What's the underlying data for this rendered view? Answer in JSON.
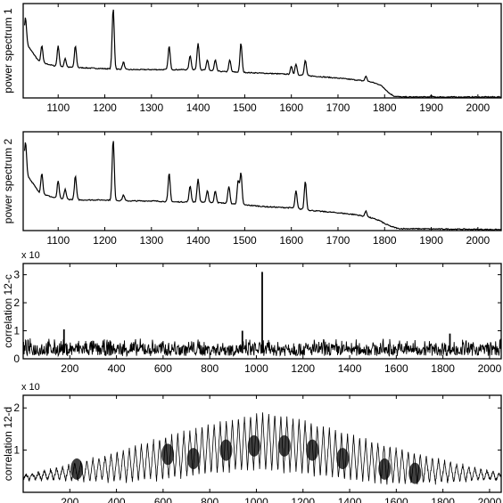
{
  "chart_data": [
    {
      "type": "line",
      "ylabel": "power spectrum 1",
      "xlim": [
        1025,
        2050
      ],
      "xticks": [
        1100,
        1200,
        1300,
        1400,
        1500,
        1600,
        1700,
        1800,
        1900,
        2000
      ],
      "yticks": [],
      "grid": false,
      "series": [
        {
          "baseline": [
            [
              1028,
              0.6
            ],
            [
              1060,
              0.38
            ],
            [
              1100,
              0.33
            ],
            [
              1150,
              0.32
            ],
            [
              1200,
              0.31
            ],
            [
              1250,
              0.3
            ],
            [
              1300,
              0.3
            ],
            [
              1350,
              0.3
            ],
            [
              1400,
              0.3
            ],
            [
              1450,
              0.28
            ],
            [
              1500,
              0.27
            ],
            [
              1550,
              0.26
            ],
            [
              1600,
              0.25
            ],
            [
              1650,
              0.23
            ],
            [
              1700,
              0.21
            ],
            [
              1740,
              0.19
            ],
            [
              1770,
              0.17
            ],
            [
              1790,
              0.14
            ],
            [
              1800,
              0.1
            ],
            [
              1810,
              0.05
            ],
            [
              1820,
              0.02
            ],
            [
              1835,
              0.01
            ],
            [
              2050,
              0.01
            ]
          ],
          "peaks": [
            [
              1030,
              0.85
            ],
            [
              1065,
              0.55
            ],
            [
              1100,
              0.55
            ],
            [
              1115,
              0.42
            ],
            [
              1137,
              0.55
            ],
            [
              1218,
              0.95
            ],
            [
              1240,
              0.38
            ],
            [
              1338,
              0.55
            ],
            [
              1383,
              0.45
            ],
            [
              1400,
              0.58
            ],
            [
              1420,
              0.4
            ],
            [
              1437,
              0.4
            ],
            [
              1468,
              0.4
            ],
            [
              1492,
              0.58
            ],
            [
              1600,
              0.33
            ],
            [
              1610,
              0.36
            ],
            [
              1630,
              0.4
            ],
            [
              1760,
              0.23
            ],
            [
              1900,
              0.02
            ]
          ]
        }
      ]
    },
    {
      "type": "line",
      "ylabel": "power spectrum 2",
      "xlim": [
        1025,
        2050
      ],
      "xticks": [
        1100,
        1200,
        1300,
        1400,
        1500,
        1600,
        1700,
        1800,
        1900,
        2000
      ],
      "yticks": [],
      "grid": false,
      "series": [
        {
          "baseline": [
            [
              1028,
              0.6
            ],
            [
              1060,
              0.38
            ],
            [
              1100,
              0.32
            ],
            [
              1150,
              0.31
            ],
            [
              1200,
              0.31
            ],
            [
              1250,
              0.3
            ],
            [
              1300,
              0.3
            ],
            [
              1350,
              0.29
            ],
            [
              1400,
              0.29
            ],
            [
              1450,
              0.28
            ],
            [
              1500,
              0.26
            ],
            [
              1550,
              0.24
            ],
            [
              1600,
              0.23
            ],
            [
              1650,
              0.2
            ],
            [
              1700,
              0.18
            ],
            [
              1740,
              0.16
            ],
            [
              1770,
              0.13
            ],
            [
              1790,
              0.1
            ],
            [
              1800,
              0.07
            ],
            [
              1815,
              0.04
            ],
            [
              1830,
              0.02
            ],
            [
              2050,
              0.01
            ]
          ],
          "peaks": [
            [
              1030,
              0.9
            ],
            [
              1065,
              0.58
            ],
            [
              1100,
              0.5
            ],
            [
              1115,
              0.42
            ],
            [
              1137,
              0.55
            ],
            [
              1218,
              0.92
            ],
            [
              1240,
              0.36
            ],
            [
              1338,
              0.58
            ],
            [
              1383,
              0.45
            ],
            [
              1400,
              0.52
            ],
            [
              1420,
              0.4
            ],
            [
              1437,
              0.4
            ],
            [
              1466,
              0.45
            ],
            [
              1486,
              0.5
            ],
            [
              1492,
              0.58
            ],
            [
              1610,
              0.4
            ],
            [
              1630,
              0.5
            ],
            [
              1760,
              0.2
            ]
          ]
        }
      ]
    },
    {
      "type": "line",
      "ylabel": "correlation 12-c",
      "exponent": "x 10",
      "xlim": [
        0,
        2050
      ],
      "ylim": [
        0,
        3.4
      ],
      "xticks": [
        200,
        400,
        600,
        800,
        1000,
        1200,
        1400,
        1600,
        1800,
        2000
      ],
      "yticks": [
        0,
        1,
        2,
        3
      ],
      "grid": false,
      "series": [
        {
          "noise_range": [
            0.1,
            0.75
          ],
          "peaks": [
            [
              1025,
              3.1
            ],
            [
              940,
              1.0
            ],
            [
              175,
              1.05
            ],
            [
              1830,
              0.9
            ]
          ]
        }
      ]
    },
    {
      "type": "line",
      "ylabel": "correlation 12-d",
      "exponent": "x 10",
      "xlim": [
        0,
        2050
      ],
      "ylim": [
        0,
        2.3
      ],
      "xticks": [
        200,
        400,
        600,
        800,
        1000,
        1200,
        1400,
        1600,
        1800,
        2000
      ],
      "yticks": [
        1,
        2
      ],
      "grid": false,
      "series": [
        {
          "envelope_upper": [
            [
              0,
              0.4
            ],
            [
              200,
              0.65
            ],
            [
              400,
              0.95
            ],
            [
              600,
              1.3
            ],
            [
              800,
              1.6
            ],
            [
              1000,
              1.85
            ],
            [
              1050,
              1.87
            ],
            [
              1200,
              1.7
            ],
            [
              1400,
              1.35
            ],
            [
              1600,
              1.05
            ],
            [
              1800,
              0.75
            ],
            [
              2050,
              0.45
            ]
          ],
          "envelope_lower": [
            [
              0,
              0.3
            ],
            [
              200,
              0.28
            ],
            [
              400,
              0.25
            ],
            [
              600,
              0.3
            ],
            [
              800,
              0.45
            ],
            [
              1000,
              0.55
            ],
            [
              1200,
              0.45
            ],
            [
              1400,
              0.3
            ],
            [
              1600,
              0.2
            ],
            [
              1800,
              0.22
            ],
            [
              2050,
              0.3
            ]
          ],
          "blobs": [
            [
              230,
              0.55
            ],
            [
              620,
              0.9
            ],
            [
              730,
              0.8
            ],
            [
              870,
              1.0
            ],
            [
              990,
              1.1
            ],
            [
              1120,
              1.1
            ],
            [
              1240,
              1.0
            ],
            [
              1370,
              0.8
            ],
            [
              1550,
              0.55
            ],
            [
              1680,
              0.45
            ]
          ],
          "carrier_period": 26
        }
      ]
    }
  ]
}
